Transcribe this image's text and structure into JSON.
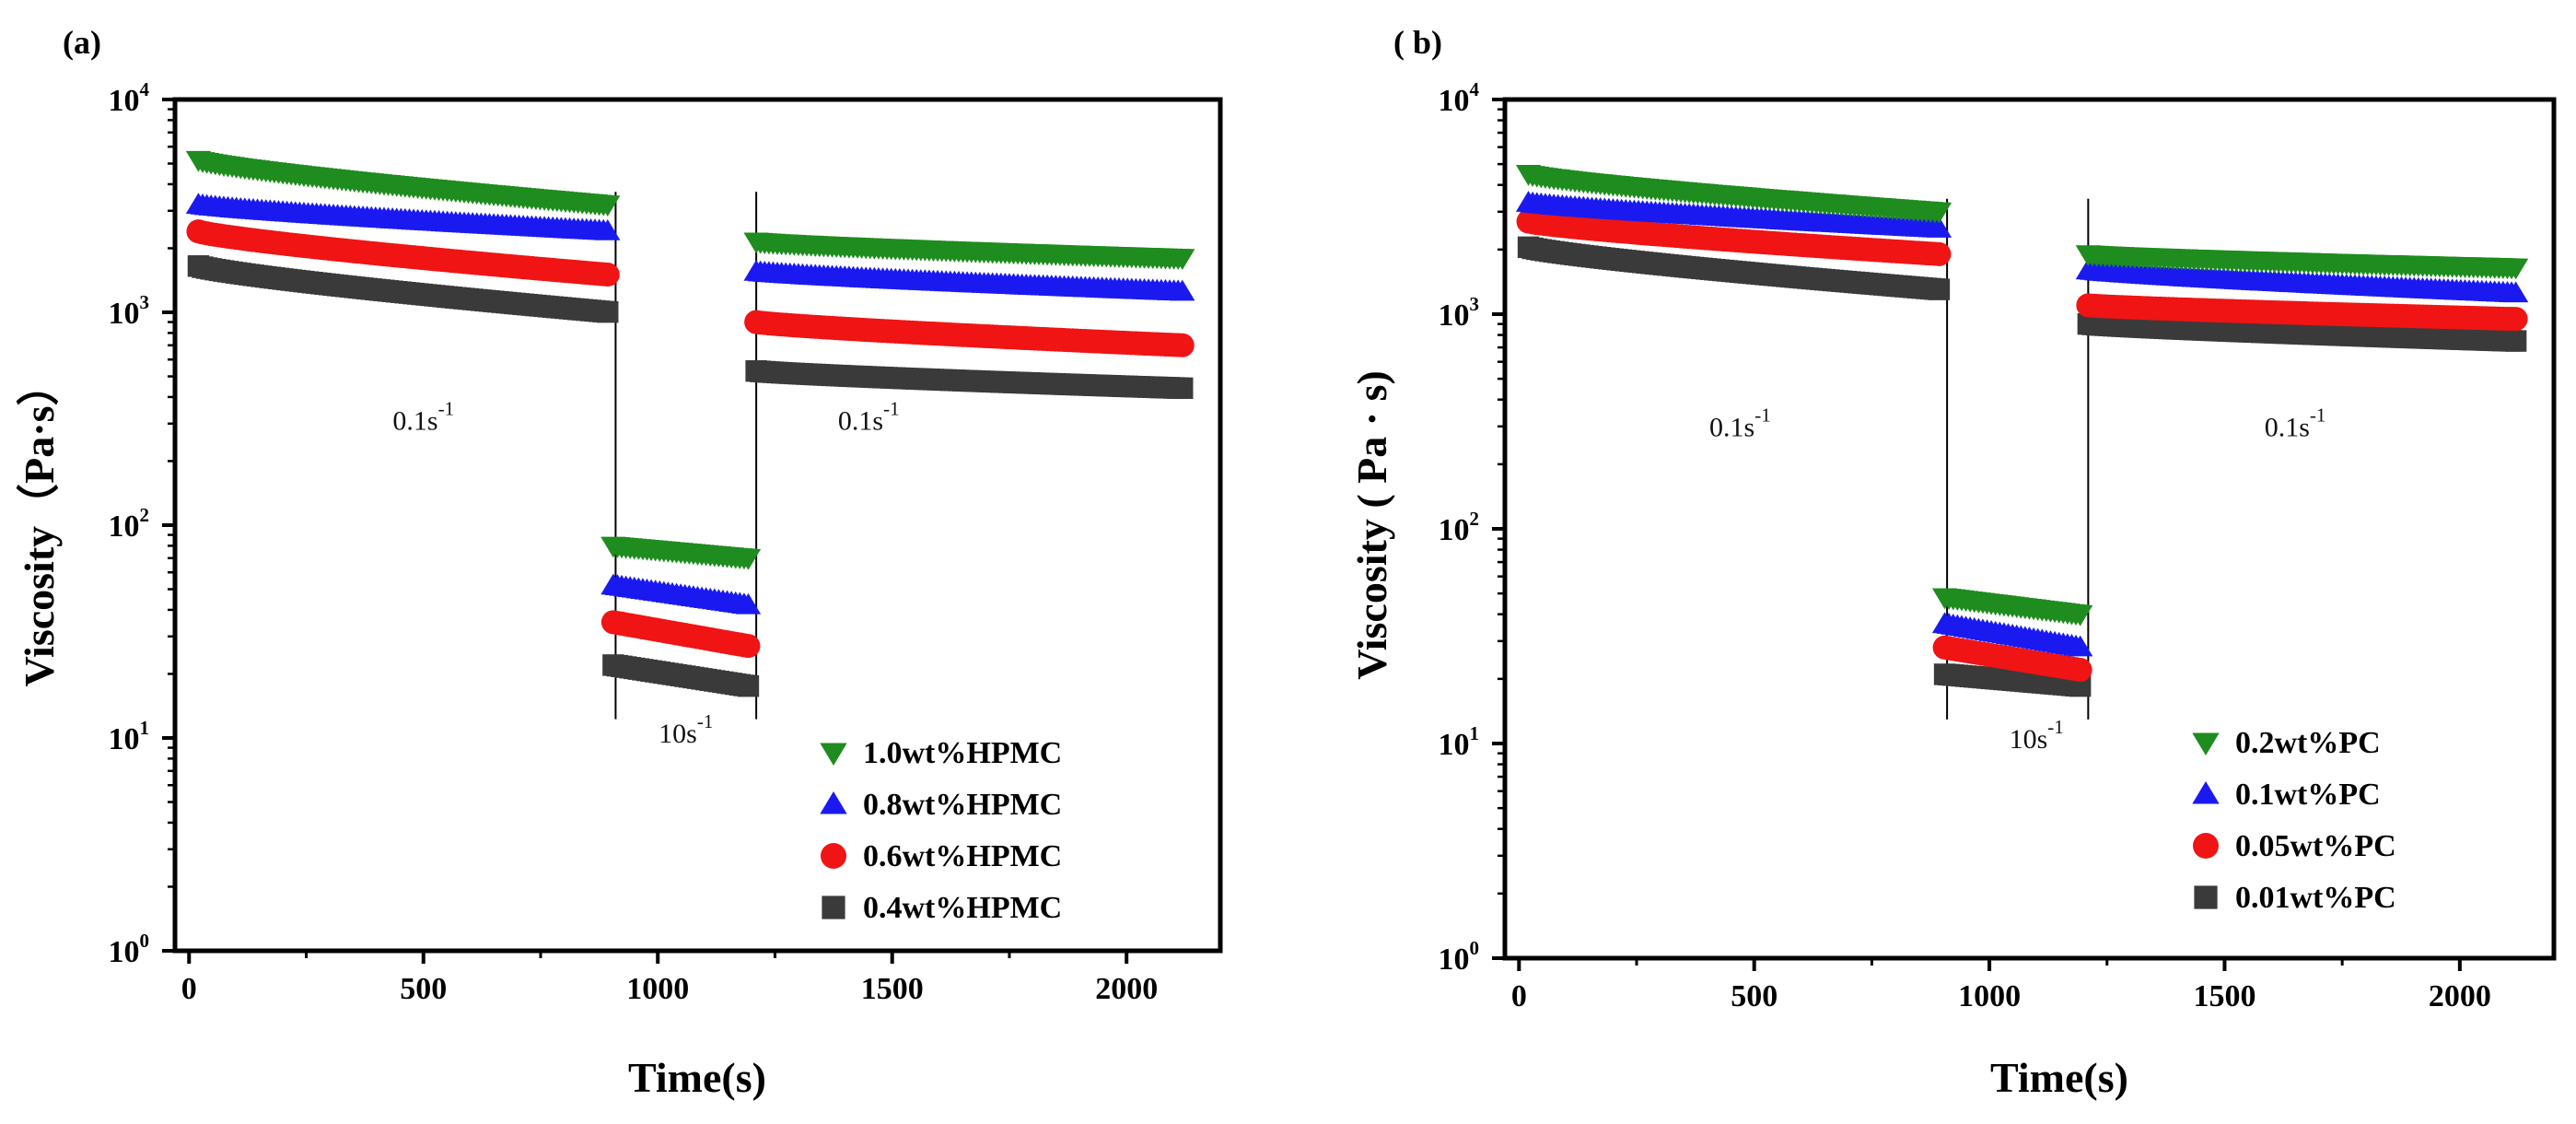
{
  "chart_data": [
    {
      "type": "scatter",
      "panel_label": "(a)",
      "xlabel": "Time(s)",
      "ylabel": "Viscosity（Pa·s）",
      "xlim": [
        -30,
        2200
      ],
      "ylim": [
        1,
        10000
      ],
      "yscale": "log",
      "xticks": [
        "0",
        "500",
        "1000",
        "1500",
        "2000"
      ],
      "yticks": [
        {
          "base": "10",
          "exp": "0"
        },
        {
          "base": "10",
          "exp": "1"
        },
        {
          "base": "10",
          "exp": "2"
        },
        {
          "base": "10",
          "exp": "3"
        },
        {
          "base": "10",
          "exp": "4"
        }
      ],
      "segments": [
        {
          "t_start": 900,
          "t_end": 1200
        }
      ],
      "annotations": [
        {
          "text": "0.1s",
          "sup": "-1",
          "x": 500,
          "y": 280
        },
        {
          "text": "10s",
          "sup": "-1",
          "x": 1060,
          "y": 9.5
        },
        {
          "text": "0.1s",
          "sup": "-1",
          "x": 1450,
          "y": 280
        }
      ],
      "series": [
        {
          "name": "1.0wt%HPMC",
          "color": "#1e8c1e",
          "marker": "triangle-down",
          "stages": [
            [
              5200,
              3200
            ],
            [
              80,
              70
            ],
            [
              2150,
              1800
            ]
          ]
        },
        {
          "name": "0.8wt%HPMC",
          "color": "#1a1af0",
          "marker": "triangle-up",
          "stages": [
            [
              3200,
              2400
            ],
            [
              52,
              42
            ],
            [
              1550,
              1250
            ]
          ]
        },
        {
          "name": "0.6wt%HPMC",
          "color": "#f01414",
          "marker": "circle",
          "stages": [
            [
              2400,
              1500
            ],
            [
              35,
              27
            ],
            [
              900,
              700
            ]
          ]
        },
        {
          "name": "0.4wt%HPMC",
          "color": "#3a3a3a",
          "marker": "square",
          "stages": [
            [
              1650,
              1000
            ],
            [
              22,
              17.5
            ],
            [
              530,
              440
            ]
          ]
        }
      ]
    },
    {
      "type": "scatter",
      "panel_label": "( b)",
      "xlabel": "Time(s)",
      "ylabel": "Viscosity ( Pa · s)",
      "xlim": [
        -30,
        2200
      ],
      "ylim": [
        1,
        10000
      ],
      "yscale": "log",
      "xticks": [
        "0",
        "500",
        "1000",
        "1500",
        "2000"
      ],
      "yticks": [
        {
          "base": "10",
          "exp": "0"
        },
        {
          "base": "10",
          "exp": "1"
        },
        {
          "base": "10",
          "exp": "2"
        },
        {
          "base": "10",
          "exp": "3"
        },
        {
          "base": "10",
          "exp": "4"
        }
      ],
      "segments": [
        {
          "t_start": 900,
          "t_end": 1200
        }
      ],
      "annotations": [
        {
          "text": "0.1s",
          "sup": "-1",
          "x": 470,
          "y": 270
        },
        {
          "text": "10s",
          "sup": "-1",
          "x": 1100,
          "y": 9.5
        },
        {
          "text": "0.1s",
          "sup": "-1",
          "x": 1650,
          "y": 270
        }
      ],
      "series": [
        {
          "name": "0.2wt%PC",
          "color": "#1e8c1e",
          "marker": "triangle-down",
          "stages": [
            [
              4500,
              3000
            ],
            [
              48,
              40
            ],
            [
              1900,
              1650
            ]
          ]
        },
        {
          "name": "0.1wt%PC",
          "color": "#1a1af0",
          "marker": "triangle-up",
          "stages": [
            [
              3300,
              2500
            ],
            [
              36,
              28
            ],
            [
              1600,
              1250
            ]
          ]
        },
        {
          "name": "0.05wt%PC",
          "color": "#f01414",
          "marker": "circle",
          "stages": [
            [
              2700,
              1900
            ],
            [
              28,
              22
            ],
            [
              1100,
              950
            ]
          ]
        },
        {
          "name": "0.01wt%PC",
          "color": "#3a3a3a",
          "marker": "square",
          "stages": [
            [
              2050,
              1300
            ],
            [
              21,
              18.5
            ],
            [
              900,
              750
            ]
          ]
        }
      ]
    }
  ]
}
